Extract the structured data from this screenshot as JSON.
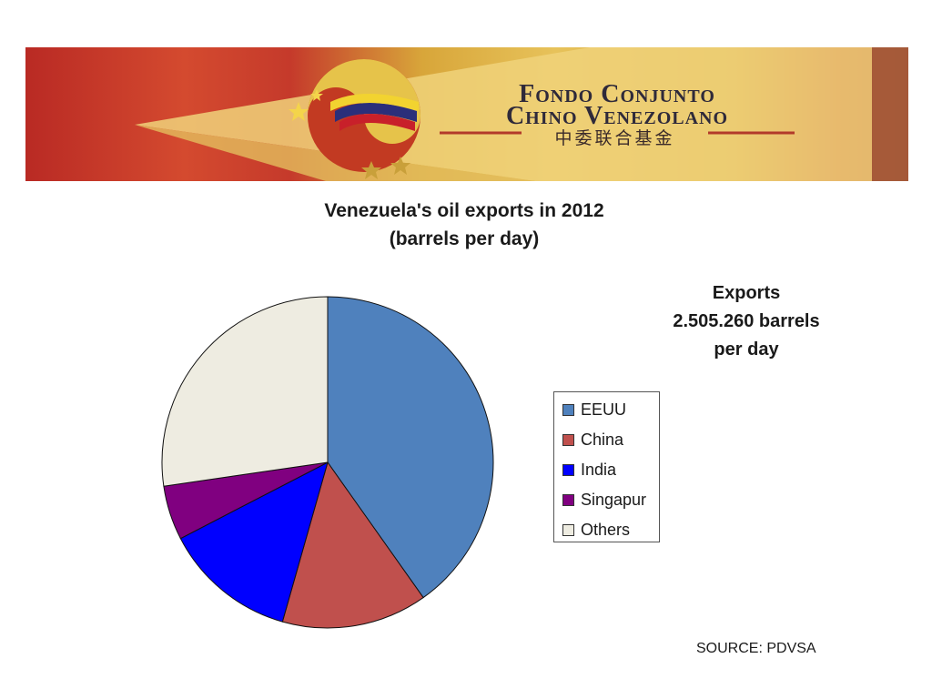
{
  "banner": {
    "line1": "Fondo Conjunto",
    "line2": "Chino Venezolano",
    "chinese": "中委联合基金"
  },
  "header": {
    "exports_line1": "Exports",
    "exports_line2": "2.505.260 barrels",
    "exports_line3": "per day"
  },
  "footer": {
    "source": "SOURCE: PDVSA"
  },
  "colors": {
    "EEUU": "#4f81bd",
    "China": "#c0504d",
    "India": "#0000ff",
    "Singapur": "#800080",
    "Others": "#eeece1"
  },
  "chart_data": {
    "type": "pie",
    "title": "Venezuela's oil exports in 2012",
    "subtitle": "(barrels per day)",
    "categories": [
      "EEUU",
      "China",
      "India",
      "Singapur",
      "Others"
    ],
    "values": [
      40.2,
      14.2,
      13.0,
      5.3,
      27.3
    ],
    "legend": "right"
  }
}
